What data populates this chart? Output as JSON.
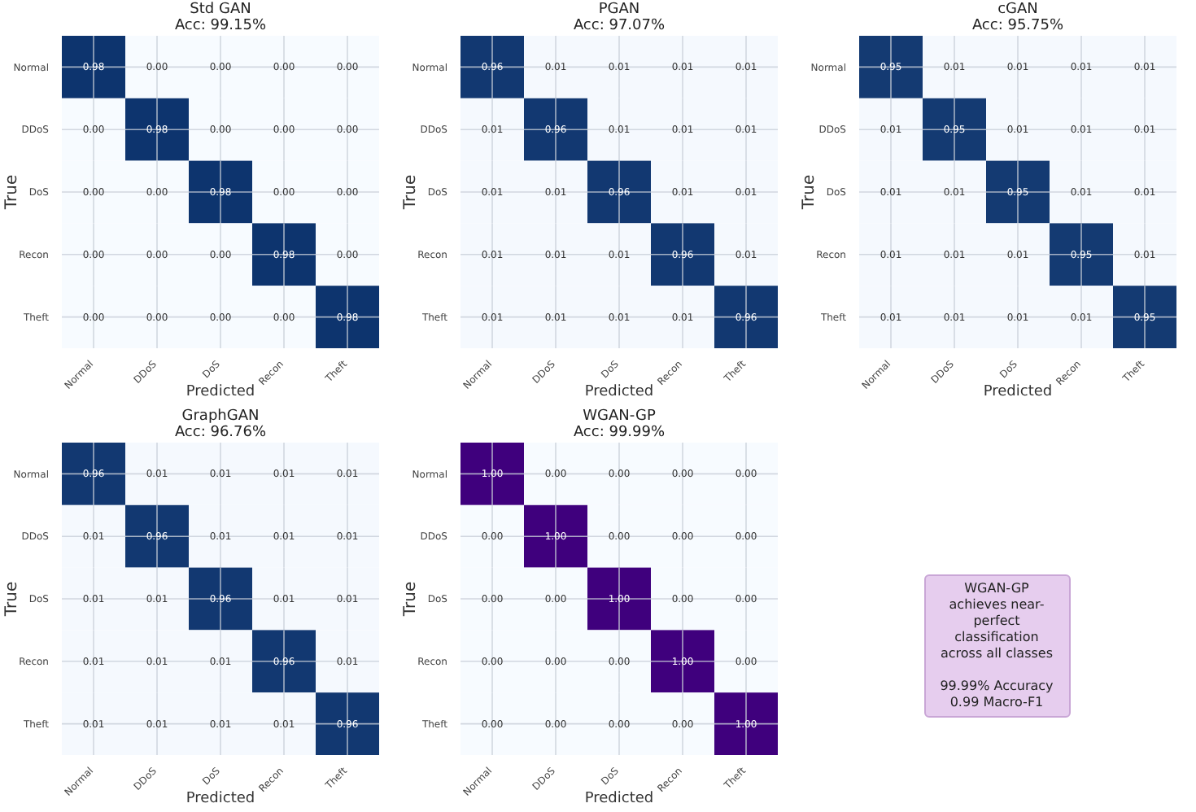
{
  "chart_data": [
    {
      "type": "heatmap",
      "title": "Std GAN",
      "subtitle": "Acc: 99.15%",
      "xlabel": "Predicted",
      "ylabel": "True",
      "categories": [
        "Normal",
        "DDoS",
        "DoS",
        "Recon",
        "Theft"
      ],
      "y_categories": [
        "Normal",
        "DDoS",
        "DoS",
        "Recon",
        "Theft"
      ],
      "color": "#08306b",
      "grid": true,
      "data_labels": true,
      "cells": [
        [
          0.98,
          0.0,
          0.0,
          0.0,
          0.0
        ],
        [
          0.0,
          0.98,
          0.0,
          0.0,
          0.0
        ],
        [
          0.0,
          0.0,
          0.98,
          0.0,
          0.0
        ],
        [
          0.0,
          0.0,
          0.0,
          0.98,
          0.0
        ],
        [
          0.0,
          0.0,
          0.0,
          0.0,
          0.98
        ]
      ],
      "cell_labels": [
        [
          "0.98",
          "0.00",
          "0.00",
          "0.00",
          "0.00"
        ],
        [
          "0.00",
          "0.98",
          "0.00",
          "0.00",
          "0.00"
        ],
        [
          "0.00",
          "0.00",
          "0.98",
          "0.00",
          "0.00"
        ],
        [
          "0.00",
          "0.00",
          "0.00",
          "0.98",
          "0.00"
        ],
        [
          "0.00",
          "0.00",
          "0.00",
          "0.00",
          "0.98"
        ]
      ]
    },
    {
      "type": "heatmap",
      "title": "PGAN",
      "subtitle": "Acc: 97.07%",
      "xlabel": "Predicted",
      "ylabel": "True",
      "categories": [
        "Normal",
        "DDoS",
        "DoS",
        "Recon",
        "Theft"
      ],
      "y_categories": [
        "Normal",
        "DDoS",
        "DoS",
        "Recon",
        "Theft"
      ],
      "color": "#08306b",
      "grid": true,
      "data_labels": true,
      "cells": [
        [
          0.96,
          0.01,
          0.01,
          0.01,
          0.01
        ],
        [
          0.01,
          0.96,
          0.01,
          0.01,
          0.01
        ],
        [
          0.01,
          0.01,
          0.96,
          0.01,
          0.01
        ],
        [
          0.01,
          0.01,
          0.01,
          0.96,
          0.01
        ],
        [
          0.01,
          0.01,
          0.01,
          0.01,
          0.96
        ]
      ]
    },
    {
      "type": "heatmap",
      "title": "cGAN",
      "subtitle": "Acc: 95.75%",
      "xlabel": "Predicted",
      "ylabel": "True",
      "categories": [
        "Normal",
        "DDoS",
        "DoS",
        "Recon",
        "Theft"
      ],
      "y_categories": [
        "Normal",
        "DDoS",
        "DoS",
        "Recon",
        "Theft"
      ],
      "color": "#08306b",
      "grid": true,
      "data_labels": true,
      "cells": [
        [
          0.95,
          0.01,
          0.01,
          0.01,
          0.01
        ],
        [
          0.01,
          0.95,
          0.01,
          0.01,
          0.01
        ],
        [
          0.01,
          0.01,
          0.95,
          0.01,
          0.01
        ],
        [
          0.01,
          0.01,
          0.01,
          0.95,
          0.01
        ],
        [
          0.01,
          0.01,
          0.01,
          0.01,
          0.95
        ]
      ]
    },
    {
      "type": "heatmap",
      "title": "GraphGAN",
      "subtitle": "Acc: 96.76%",
      "xlabel": "Predicted",
      "ylabel": "True",
      "categories": [
        "Normal",
        "DDoS",
        "DoS",
        "Recon",
        "Theft"
      ],
      "y_categories": [
        "Normal",
        "DDoS",
        "DoS",
        "Recon",
        "Theft"
      ],
      "color": "#08306b",
      "grid": true,
      "data_labels": true,
      "cells": [
        [
          0.96,
          0.01,
          0.01,
          0.01,
          0.01
        ],
        [
          0.01,
          0.96,
          0.01,
          0.01,
          0.01
        ],
        [
          0.01,
          0.01,
          0.96,
          0.01,
          0.01
        ],
        [
          0.01,
          0.01,
          0.01,
          0.96,
          0.01
        ],
        [
          0.01,
          0.01,
          0.01,
          0.01,
          0.96
        ]
      ]
    },
    {
      "type": "heatmap",
      "title": "WGAN-GP",
      "subtitle": "Acc: 99.99%",
      "xlabel": "Predicted",
      "ylabel": "True",
      "categories": [
        "Normal",
        "DDoS",
        "DoS",
        "Recon",
        "Theft"
      ],
      "y_categories": [
        "Normal",
        "DDoS",
        "DoS",
        "Recon",
        "Theft"
      ],
      "color": "#3f007d",
      "grid": true,
      "data_labels": true,
      "cells": [
        [
          1.0,
          0.0,
          0.0,
          0.0,
          0.0
        ],
        [
          0.0,
          1.0,
          0.0,
          0.0,
          0.0
        ],
        [
          0.0,
          0.0,
          1.0,
          0.0,
          0.0
        ],
        [
          0.0,
          0.0,
          0.0,
          1.0,
          0.0
        ],
        [
          0.0,
          0.0,
          0.0,
          0.0,
          1.0
        ]
      ],
      "cell_labels": [
        [
          "1.00",
          "0.00",
          "0.00",
          "0.00",
          "0.00"
        ],
        [
          "0.00",
          "1.00",
          "0.00",
          "0.00",
          "0.00"
        ],
        [
          "0.00",
          "0.00",
          "1.00",
          "0.00",
          "0.00"
        ],
        [
          "0.00",
          "0.00",
          "0.00",
          "1.00",
          "0.00"
        ],
        [
          "0.00",
          "0.00",
          "0.00",
          "0.00",
          "1.00"
        ]
      ]
    },
    {
      "type": "other",
      "annotations": [
        "WGAN-GP achieves near-perfect classification across all classes",
        "99.99% Accuracy",
        "0.99 Macro-F1"
      ]
    }
  ]
}
